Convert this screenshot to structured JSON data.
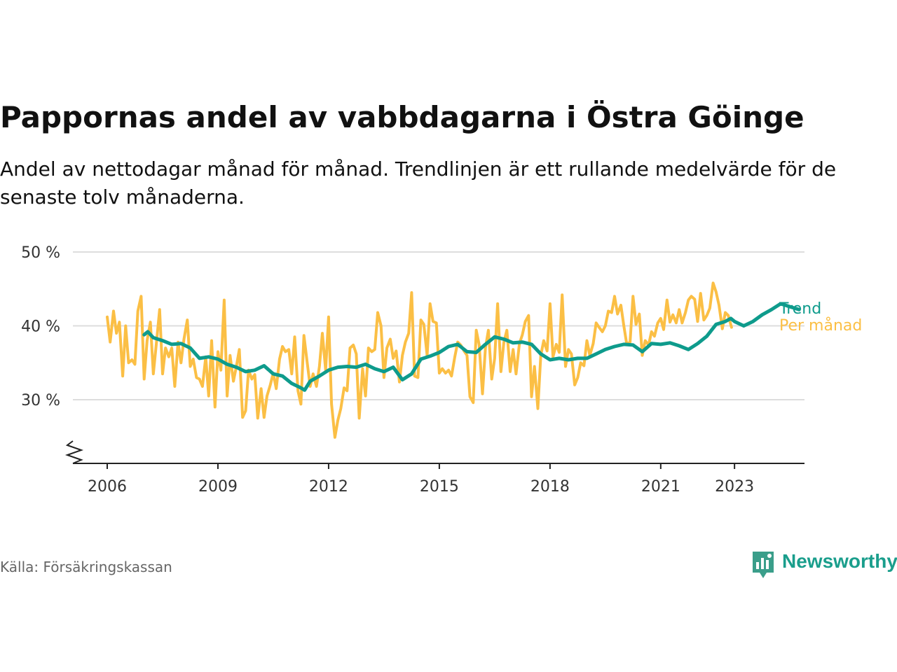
{
  "title": "Pappornas andel av vabbdagarna i Östra Göinge",
  "subtitle": "Andel av nettodagar månad för månad. Trendlinjen är ett rullande medelvärde för de senaste tolv månaderna.",
  "source": "Källa: Försäkringskassan",
  "brand": {
    "name": "Newsworthy",
    "icon": "newsworthy-logo-icon",
    "color": "#1a9e8c"
  },
  "colors": {
    "trend": "#0e9b8c",
    "monthly": "#fbbf45",
    "grid": "#dddddd",
    "axis": "#222222"
  },
  "chart_data": {
    "type": "line",
    "title": "Pappornas andel av vabbdagarna i Östra Göinge",
    "ylim": [
      21.5,
      50
    ],
    "yticks": [
      {
        "value": 30,
        "label": "30 %"
      },
      {
        "value": 40,
        "label": "40 %"
      },
      {
        "value": 50,
        "label": "50 %"
      }
    ],
    "xlim": [
      2005.2,
      2024.2
    ],
    "xticks": [
      2006,
      2009,
      2012,
      2015,
      2018,
      2021,
      2023
    ],
    "grid": true,
    "axis_break": true,
    "series": [
      {
        "name": "Trend",
        "color": "#0e9b8c",
        "points": [
          [
            2007.0,
            38.8
          ],
          [
            2007.1,
            39.2
          ],
          [
            2007.25,
            38.4
          ],
          [
            2007.5,
            38.0
          ],
          [
            2007.75,
            37.5
          ],
          [
            2008.0,
            37.6
          ],
          [
            2008.25,
            37.0
          ],
          [
            2008.5,
            35.6
          ],
          [
            2008.75,
            35.8
          ],
          [
            2009.0,
            35.5
          ],
          [
            2009.25,
            34.8
          ],
          [
            2009.5,
            34.4
          ],
          [
            2009.75,
            33.8
          ],
          [
            2010.0,
            34.0
          ],
          [
            2010.25,
            34.6
          ],
          [
            2010.5,
            33.5
          ],
          [
            2010.75,
            33.2
          ],
          [
            2011.0,
            32.2
          ],
          [
            2011.25,
            31.6
          ],
          [
            2011.35,
            31.3
          ],
          [
            2011.5,
            32.5
          ],
          [
            2011.75,
            33.2
          ],
          [
            2012.0,
            34.0
          ],
          [
            2012.25,
            34.4
          ],
          [
            2012.5,
            34.5
          ],
          [
            2012.75,
            34.4
          ],
          [
            2013.0,
            34.8
          ],
          [
            2013.25,
            34.2
          ],
          [
            2013.5,
            33.8
          ],
          [
            2013.75,
            34.4
          ],
          [
            2014.0,
            32.7
          ],
          [
            2014.25,
            33.5
          ],
          [
            2014.5,
            35.5
          ],
          [
            2014.75,
            35.9
          ],
          [
            2015.0,
            36.4
          ],
          [
            2015.25,
            37.2
          ],
          [
            2015.5,
            37.5
          ],
          [
            2015.75,
            36.5
          ],
          [
            2016.0,
            36.4
          ],
          [
            2016.25,
            37.5
          ],
          [
            2016.5,
            38.5
          ],
          [
            2016.75,
            38.2
          ],
          [
            2017.0,
            37.7
          ],
          [
            2017.25,
            37.8
          ],
          [
            2017.5,
            37.5
          ],
          [
            2017.75,
            36.2
          ],
          [
            2018.0,
            35.4
          ],
          [
            2018.25,
            35.6
          ],
          [
            2018.5,
            35.4
          ],
          [
            2018.75,
            35.6
          ],
          [
            2019.0,
            35.6
          ],
          [
            2019.25,
            36.2
          ],
          [
            2019.5,
            36.8
          ],
          [
            2019.75,
            37.2
          ],
          [
            2020.0,
            37.5
          ],
          [
            2020.25,
            37.4
          ],
          [
            2020.5,
            36.5
          ],
          [
            2020.75,
            37.6
          ],
          [
            2021.0,
            37.5
          ],
          [
            2021.25,
            37.7
          ],
          [
            2021.5,
            37.3
          ],
          [
            2021.75,
            36.8
          ],
          [
            2022.0,
            37.6
          ],
          [
            2022.25,
            38.6
          ],
          [
            2022.5,
            40.2
          ],
          [
            2022.75,
            40.6
          ],
          [
            2022.9,
            41.0
          ],
          [
            2023.0,
            40.6
          ],
          [
            2023.25,
            40.0
          ],
          [
            2023.5,
            40.6
          ],
          [
            2023.75,
            41.5
          ],
          [
            2024.0,
            42.2
          ],
          [
            2024.25,
            43.0
          ],
          [
            2024.5,
            42.6
          ],
          [
            2024.75,
            42.2
          ]
        ]
      },
      {
        "name": "Per månad",
        "color": "#fbbf45",
        "points": [
          [
            2006.0,
            41.2
          ],
          [
            2006.08,
            37.8
          ],
          [
            2006.17,
            42.0
          ],
          [
            2006.25,
            39.0
          ],
          [
            2006.33,
            40.5
          ],
          [
            2006.42,
            33.2
          ],
          [
            2006.5,
            40.0
          ],
          [
            2006.58,
            35.0
          ],
          [
            2006.67,
            35.4
          ],
          [
            2006.75,
            34.8
          ],
          [
            2006.83,
            42.0
          ],
          [
            2006.92,
            44.0
          ],
          [
            2007.0,
            32.8
          ],
          [
            2007.08,
            38.0
          ],
          [
            2007.17,
            40.5
          ],
          [
            2007.25,
            33.5
          ],
          [
            2007.33,
            37.5
          ],
          [
            2007.42,
            42.2
          ],
          [
            2007.5,
            33.5
          ],
          [
            2007.58,
            37.0
          ],
          [
            2007.67,
            35.8
          ],
          [
            2007.75,
            37.0
          ],
          [
            2007.83,
            31.8
          ],
          [
            2007.92,
            37.8
          ],
          [
            2008.0,
            35.0
          ],
          [
            2008.08,
            38.2
          ],
          [
            2008.17,
            40.8
          ],
          [
            2008.25,
            34.5
          ],
          [
            2008.33,
            35.5
          ],
          [
            2008.42,
            33.0
          ],
          [
            2008.5,
            32.8
          ],
          [
            2008.58,
            31.8
          ],
          [
            2008.67,
            35.8
          ],
          [
            2008.75,
            30.5
          ],
          [
            2008.83,
            38.0
          ],
          [
            2008.92,
            29.0
          ],
          [
            2009.0,
            36.5
          ],
          [
            2009.08,
            34.0
          ],
          [
            2009.17,
            43.5
          ],
          [
            2009.25,
            30.5
          ],
          [
            2009.33,
            36.0
          ],
          [
            2009.42,
            32.5
          ],
          [
            2009.5,
            34.5
          ],
          [
            2009.58,
            36.8
          ],
          [
            2009.67,
            27.6
          ],
          [
            2009.75,
            28.5
          ],
          [
            2009.83,
            34.0
          ],
          [
            2009.92,
            32.8
          ],
          [
            2010.0,
            33.4
          ],
          [
            2010.08,
            27.5
          ],
          [
            2010.17,
            31.5
          ],
          [
            2010.25,
            27.6
          ],
          [
            2010.33,
            30.5
          ],
          [
            2010.42,
            32.0
          ],
          [
            2010.5,
            33.6
          ],
          [
            2010.58,
            31.5
          ],
          [
            2010.67,
            35.5
          ],
          [
            2010.75,
            37.2
          ],
          [
            2010.83,
            36.5
          ],
          [
            2010.92,
            36.8
          ],
          [
            2011.0,
            33.5
          ],
          [
            2011.08,
            38.5
          ],
          [
            2011.17,
            31.2
          ],
          [
            2011.25,
            29.4
          ],
          [
            2011.33,
            38.7
          ],
          [
            2011.42,
            35.0
          ],
          [
            2011.5,
            31.8
          ],
          [
            2011.58,
            33.5
          ],
          [
            2011.67,
            31.8
          ],
          [
            2011.75,
            34.5
          ],
          [
            2011.83,
            39.0
          ],
          [
            2011.92,
            34.0
          ],
          [
            2012.0,
            41.2
          ],
          [
            2012.08,
            29.4
          ],
          [
            2012.17,
            24.9
          ],
          [
            2012.25,
            27.2
          ],
          [
            2012.33,
            28.8
          ],
          [
            2012.42,
            31.6
          ],
          [
            2012.5,
            31.2
          ],
          [
            2012.58,
            37.0
          ],
          [
            2012.67,
            37.4
          ],
          [
            2012.75,
            36.2
          ],
          [
            2012.83,
            27.5
          ],
          [
            2012.92,
            34.2
          ],
          [
            2013.0,
            30.5
          ],
          [
            2013.08,
            37.0
          ],
          [
            2013.17,
            36.5
          ],
          [
            2013.25,
            36.8
          ],
          [
            2013.33,
            41.8
          ],
          [
            2013.42,
            40.0
          ],
          [
            2013.5,
            33.0
          ],
          [
            2013.58,
            37.0
          ],
          [
            2013.67,
            38.2
          ],
          [
            2013.75,
            35.6
          ],
          [
            2013.83,
            36.6
          ],
          [
            2013.92,
            32.4
          ],
          [
            2014.0,
            36.0
          ],
          [
            2014.08,
            37.8
          ],
          [
            2014.17,
            39.0
          ],
          [
            2014.25,
            44.5
          ],
          [
            2014.33,
            33.2
          ],
          [
            2014.42,
            33.0
          ],
          [
            2014.5,
            40.8
          ],
          [
            2014.58,
            40.2
          ],
          [
            2014.67,
            36.0
          ],
          [
            2014.75,
            43.0
          ],
          [
            2014.83,
            40.6
          ],
          [
            2014.92,
            40.4
          ],
          [
            2015.0,
            33.6
          ],
          [
            2015.08,
            34.2
          ],
          [
            2015.17,
            33.6
          ],
          [
            2015.25,
            34.0
          ],
          [
            2015.33,
            33.2
          ],
          [
            2015.42,
            35.8
          ],
          [
            2015.5,
            37.8
          ],
          [
            2015.58,
            37.4
          ],
          [
            2015.67,
            36.6
          ],
          [
            2015.75,
            36.0
          ],
          [
            2015.83,
            30.4
          ],
          [
            2015.92,
            29.6
          ],
          [
            2016.0,
            39.4
          ],
          [
            2016.08,
            37.4
          ],
          [
            2016.17,
            30.8
          ],
          [
            2016.25,
            37.0
          ],
          [
            2016.33,
            39.4
          ],
          [
            2016.42,
            32.8
          ],
          [
            2016.5,
            35.6
          ],
          [
            2016.58,
            43.0
          ],
          [
            2016.67,
            33.8
          ],
          [
            2016.75,
            37.8
          ],
          [
            2016.83,
            39.4
          ],
          [
            2016.92,
            33.8
          ],
          [
            2017.0,
            36.8
          ],
          [
            2017.08,
            33.5
          ],
          [
            2017.17,
            37.6
          ],
          [
            2017.25,
            38.8
          ],
          [
            2017.33,
            40.6
          ],
          [
            2017.42,
            41.4
          ],
          [
            2017.5,
            30.4
          ],
          [
            2017.58,
            34.5
          ],
          [
            2017.67,
            28.8
          ],
          [
            2017.75,
            36.0
          ],
          [
            2017.83,
            38.0
          ],
          [
            2017.92,
            36.6
          ],
          [
            2018.0,
            43.0
          ],
          [
            2018.08,
            35.8
          ],
          [
            2018.17,
            37.5
          ],
          [
            2018.25,
            36.4
          ],
          [
            2018.33,
            44.2
          ],
          [
            2018.42,
            34.5
          ],
          [
            2018.5,
            36.8
          ],
          [
            2018.58,
            36.2
          ],
          [
            2018.67,
            32.0
          ],
          [
            2018.75,
            33.0
          ],
          [
            2018.83,
            35.0
          ],
          [
            2018.92,
            34.6
          ],
          [
            2019.0,
            38.0
          ],
          [
            2019.08,
            36.0
          ],
          [
            2019.17,
            37.6
          ],
          [
            2019.25,
            40.4
          ],
          [
            2019.33,
            39.8
          ],
          [
            2019.42,
            39.2
          ],
          [
            2019.5,
            40.0
          ],
          [
            2019.58,
            42.0
          ],
          [
            2019.67,
            41.8
          ],
          [
            2019.75,
            44.0
          ],
          [
            2019.83,
            41.6
          ],
          [
            2019.92,
            42.8
          ],
          [
            2020.0,
            40.0
          ],
          [
            2020.08,
            37.5
          ],
          [
            2020.17,
            37.8
          ],
          [
            2020.25,
            44.0
          ],
          [
            2020.33,
            40.2
          ],
          [
            2020.42,
            41.6
          ],
          [
            2020.5,
            36.0
          ],
          [
            2020.58,
            38.0
          ],
          [
            2020.67,
            37.4
          ],
          [
            2020.75,
            39.2
          ],
          [
            2020.83,
            38.6
          ],
          [
            2020.92,
            40.4
          ],
          [
            2021.0,
            41.0
          ],
          [
            2021.08,
            39.5
          ],
          [
            2021.17,
            43.5
          ],
          [
            2021.25,
            40.5
          ],
          [
            2021.33,
            41.5
          ],
          [
            2021.42,
            40.4
          ],
          [
            2021.5,
            42.2
          ],
          [
            2021.58,
            40.4
          ],
          [
            2021.67,
            41.8
          ],
          [
            2021.75,
            43.5
          ],
          [
            2021.83,
            44.0
          ],
          [
            2021.92,
            43.6
          ],
          [
            2022.0,
            40.6
          ],
          [
            2022.08,
            44.4
          ],
          [
            2022.17,
            40.8
          ],
          [
            2022.25,
            41.4
          ],
          [
            2022.33,
            42.4
          ],
          [
            2022.42,
            45.8
          ],
          [
            2022.5,
            44.6
          ],
          [
            2022.58,
            42.8
          ],
          [
            2022.67,
            39.6
          ],
          [
            2022.75,
            41.8
          ],
          [
            2022.83,
            41.4
          ],
          [
            2022.92,
            39.8
          ]
        ]
      }
    ]
  }
}
